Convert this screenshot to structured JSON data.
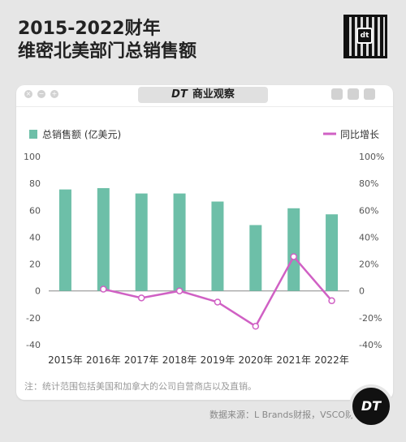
{
  "title_line1": "2015-2022财年",
  "title_line2": "维密北美部门总销售额",
  "brand": {
    "logo": "DT",
    "name": "商业观察"
  },
  "note": "注：统计范围包括美国和加拿大的公司自营商店以及直销。",
  "source": "数据来源：L Brands财报，VSCO财报",
  "colors": {
    "bar": "#6dbfa8",
    "line": "#d060c4",
    "background": "#e6e6e6",
    "panel": "#ffffff"
  },
  "chart_data": {
    "type": "bar",
    "categories": [
      "2015年",
      "2016年",
      "2017年",
      "2018年",
      "2019年",
      "2020年",
      "2021年",
      "2022年"
    ],
    "series": [
      {
        "name": "总销售额 (亿美元)",
        "type": "bar",
        "axis": "left",
        "values": [
          75.5,
          76.5,
          72.5,
          72.5,
          66.5,
          49,
          61.5,
          57
        ]
      },
      {
        "name": "同比增长",
        "type": "line",
        "axis": "right",
        "values": [
          null,
          1.3,
          -5.2,
          0,
          -8.3,
          -26.3,
          25.5,
          -7.3
        ]
      }
    ],
    "y_left": {
      "lim": [
        -40,
        100
      ],
      "ticks": [
        "100",
        "80",
        "60",
        "40",
        "20",
        "0",
        "-20",
        "-40"
      ]
    },
    "y_right": {
      "lim": [
        -40,
        100
      ],
      "ticks": [
        "100%",
        "80%",
        "60%",
        "40%",
        "20%",
        "0",
        "-20%",
        "-40%"
      ]
    },
    "legend": "top",
    "grid": false
  }
}
